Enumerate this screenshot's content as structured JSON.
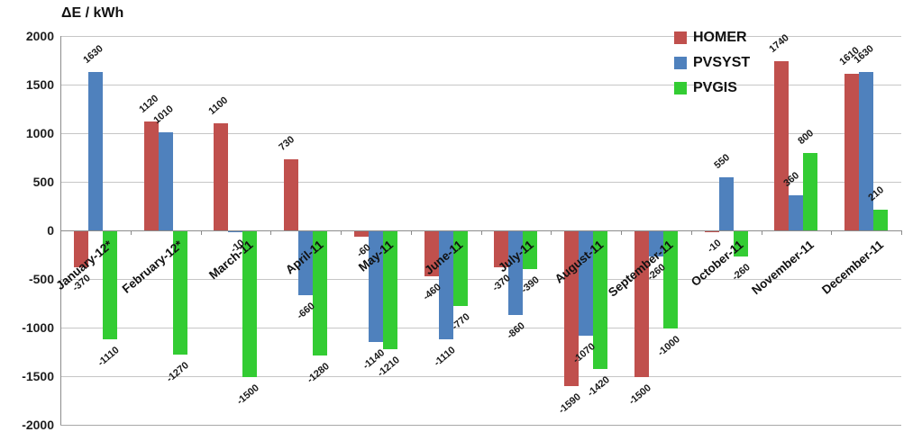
{
  "title": "ΔE / kWh",
  "chart_data": {
    "type": "bar",
    "title": "ΔE / kWh",
    "xlabel": "",
    "ylabel": "ΔE / kWh",
    "ylim": [
      -2000,
      2000
    ],
    "ytick_step": 500,
    "yticks": [
      2000,
      1500,
      1000,
      500,
      0,
      -500,
      -1000,
      -1500,
      -2000
    ],
    "grid": true,
    "data_labels": true,
    "legend_position": "top-right",
    "categories": [
      "January-12*",
      "February-12*",
      "March-11",
      "April-11",
      "May-11",
      "June-11",
      "July-11",
      "August-11",
      "September-11",
      "October-11",
      "November-11",
      "December-11"
    ],
    "series": [
      {
        "name": "HOMER",
        "color": "#C0504D",
        "values": [
          -370,
          1120,
          1100,
          730,
          -60,
          -460,
          -370,
          -1590,
          -1500,
          -10,
          1740,
          1610
        ]
      },
      {
        "name": "PVSYST",
        "color": "#4F81BD",
        "values": [
          1630,
          1010,
          -10,
          -660,
          -1140,
          -1110,
          -860,
          -1070,
          -260,
          550,
          360,
          1630
        ]
      },
      {
        "name": "PVGIS",
        "color": "#33CC33",
        "values": [
          -1110,
          -1270,
          -1500,
          -1280,
          -1210,
          -770,
          -390,
          -1420,
          -1000,
          -260,
          800,
          210
        ]
      }
    ]
  }
}
